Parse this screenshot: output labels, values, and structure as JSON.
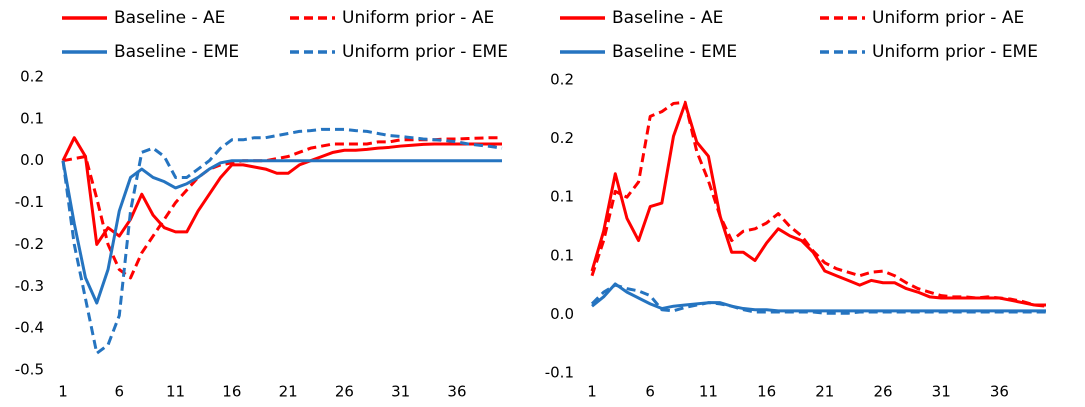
{
  "chart_data": [
    {
      "type": "line",
      "x": [
        1,
        2,
        3,
        4,
        5,
        6,
        7,
        8,
        9,
        10,
        11,
        12,
        13,
        14,
        15,
        16,
        17,
        18,
        19,
        20,
        21,
        22,
        23,
        24,
        25,
        26,
        27,
        28,
        29,
        30,
        31,
        32,
        33,
        34,
        35,
        36,
        37,
        38,
        39,
        40
      ],
      "xlim": [
        1,
        40
      ],
      "xticks": [
        1,
        6,
        11,
        16,
        21,
        26,
        31,
        36
      ],
      "ylim": [
        -0.5,
        0.2
      ],
      "yticks": [
        -0.5,
        -0.4,
        -0.3,
        -0.2,
        -0.1,
        {
          "value": 0,
          "label": "0.0"
        },
        0.1,
        0.2
      ],
      "legend": "top",
      "series": [
        {
          "name": "Baseline - AE",
          "color": "#ff0000",
          "dash": false,
          "values": [
            0,
            0.055,
            0.01,
            -0.2,
            -0.16,
            -0.18,
            -0.14,
            -0.08,
            -0.13,
            -0.16,
            -0.17,
            -0.17,
            -0.12,
            -0.08,
            -0.04,
            -0.01,
            -0.01,
            -0.015,
            -0.02,
            -0.03,
            -0.03,
            -0.01,
            0,
            0.01,
            0.02,
            0.025,
            0.025,
            0.027,
            0.03,
            0.032,
            0.035,
            0.037,
            0.039,
            0.04,
            0.04,
            0.04,
            0.04,
            0.04,
            0.04,
            0.04
          ]
        },
        {
          "name": "Uniform prior - AE",
          "color": "#ff0000",
          "dash": true,
          "values": [
            0,
            0.005,
            0.01,
            -0.09,
            -0.2,
            -0.26,
            -0.28,
            -0.22,
            -0.18,
            -0.14,
            -0.1,
            -0.07,
            -0.04,
            -0.02,
            -0.01,
            -0.005,
            0,
            0,
            0,
            0.005,
            0.01,
            0.02,
            0.03,
            0.035,
            0.04,
            0.04,
            0.04,
            0.04,
            0.045,
            0.045,
            0.05,
            0.05,
            0.05,
            0.05,
            0.052,
            0.052,
            0.053,
            0.054,
            0.055,
            0.055
          ]
        },
        {
          "name": "Baseline - EME",
          "color": "#2574c0",
          "dash": false,
          "values": [
            0,
            -0.15,
            -0.28,
            -0.34,
            -0.26,
            -0.12,
            -0.04,
            -0.02,
            -0.04,
            -0.05,
            -0.065,
            -0.055,
            -0.04,
            -0.02,
            -0.005,
            0,
            0,
            0,
            0,
            0,
            0,
            0,
            0,
            0,
            0,
            0,
            0,
            0,
            0,
            0,
            0,
            0,
            0,
            0,
            0,
            0,
            0,
            0,
            0,
            0
          ]
        },
        {
          "name": "Uniform prior - EME",
          "color": "#2574c0",
          "dash": true,
          "values": [
            0,
            -0.2,
            -0.33,
            -0.46,
            -0.44,
            -0.37,
            -0.12,
            0.02,
            0.03,
            0.01,
            -0.04,
            -0.04,
            -0.02,
            0,
            0.03,
            0.05,
            0.05,
            0.055,
            0.055,
            0.06,
            0.065,
            0.07,
            0.072,
            0.075,
            0.075,
            0.075,
            0.072,
            0.07,
            0.065,
            0.06,
            0.058,
            0.055,
            0.052,
            0.05,
            0.048,
            0.045,
            0.04,
            0.037,
            0.034,
            0.03
          ]
        }
      ]
    },
    {
      "type": "line",
      "x": [
        1,
        2,
        3,
        4,
        5,
        6,
        7,
        8,
        9,
        10,
        11,
        12,
        13,
        14,
        15,
        16,
        17,
        18,
        19,
        20,
        21,
        22,
        23,
        24,
        25,
        26,
        27,
        28,
        29,
        30,
        31,
        32,
        33,
        34,
        35,
        36,
        37,
        38,
        39,
        40
      ],
      "xlim": [
        1,
        40
      ],
      "xticks": [
        1,
        6,
        11,
        16,
        21,
        26,
        31,
        36
      ],
      "ylim": [
        -0.05,
        0.2
      ],
      "yticks": [
        {
          "value": -0.05,
          "label": "-0.1"
        },
        {
          "value": 0,
          "label": "0.0"
        },
        {
          "value": 0.05,
          "label": "0.1"
        },
        0.1,
        {
          "value": 0.15,
          "label": "0.2"
        },
        0.2
      ],
      "legend": "top",
      "series": [
        {
          "name": "Baseline - AE",
          "color": "#ff0000",
          "dash": false,
          "values": [
            0.037,
            0.071,
            0.12,
            0.082,
            0.063,
            0.092,
            0.095,
            0.152,
            0.18,
            0.147,
            0.135,
            0.084,
            0.053,
            0.053,
            0.046,
            0.061,
            0.073,
            0.067,
            0.063,
            0.053,
            0.037,
            0.033,
            0.029,
            0.025,
            0.029,
            0.027,
            0.027,
            0.022,
            0.019,
            0.015,
            0.014,
            0.014,
            0.014,
            0.014,
            0.014,
            0.014,
            0.012,
            0.01,
            0.008,
            0.008
          ]
        },
        {
          "name": "Uniform prior - AE",
          "color": "#ff0000",
          "dash": true,
          "values": [
            0.033,
            0.063,
            0.105,
            0.1,
            0.113,
            0.169,
            0.173,
            0.18,
            0.181,
            0.139,
            0.114,
            0.084,
            0.063,
            0.071,
            0.073,
            0.078,
            0.086,
            0.075,
            0.067,
            0.054,
            0.044,
            0.039,
            0.036,
            0.033,
            0.036,
            0.037,
            0.033,
            0.027,
            0.022,
            0.019,
            0.016,
            0.015,
            0.015,
            0.014,
            0.015,
            0.014,
            0.013,
            0.011,
            0.008,
            0.007
          ]
        },
        {
          "name": "Baseline - EME",
          "color": "#2574c0",
          "dash": false,
          "values": [
            0.007,
            0.015,
            0.026,
            0.019,
            0.014,
            0.009,
            0.005,
            0.007,
            0.008,
            0.009,
            0.01,
            0.01,
            0.007,
            0.005,
            0.004,
            0.004,
            0.003,
            0.003,
            0.003,
            0.003,
            0.003,
            0.003,
            0.003,
            0.003,
            0.003,
            0.003,
            0.003,
            0.003,
            0.003,
            0.003,
            0.003,
            0.003,
            0.003,
            0.003,
            0.003,
            0.003,
            0.003,
            0.003,
            0.003,
            0.003
          ]
        },
        {
          "name": "Uniform prior - EME",
          "color": "#2574c0",
          "dash": true,
          "values": [
            0.009,
            0.019,
            0.025,
            0.022,
            0.02,
            0.016,
            0.004,
            0.003,
            0.006,
            0.008,
            0.01,
            0.009,
            0.007,
            0.004,
            0.002,
            0.002,
            0.002,
            0.002,
            0.002,
            0.002,
            0.001,
            0.001,
            0.001,
            0.002,
            0.002,
            0.002,
            0.002,
            0.002,
            0.002,
            0.002,
            0.002,
            0.002,
            0.002,
            0.002,
            0.002,
            0.002,
            0.002,
            0.002,
            0.002,
            0.002
          ]
        }
      ]
    }
  ]
}
